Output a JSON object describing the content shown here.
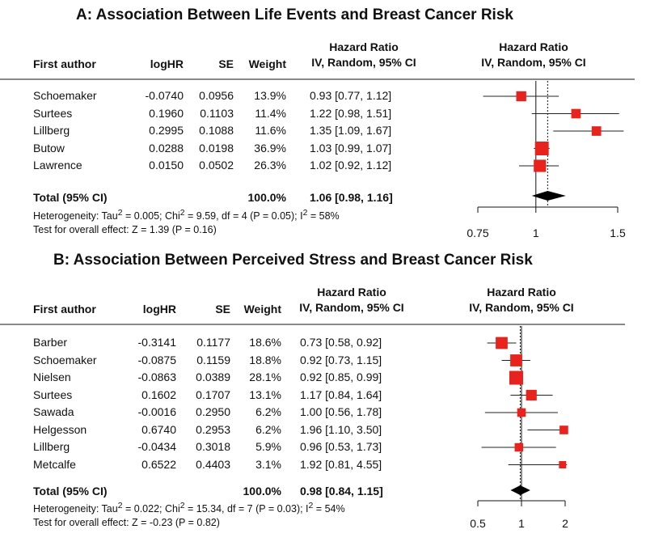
{
  "chart_data": [
    {
      "type": "forest",
      "title": "A: Association Between Life Events and Breast Cancer Risk",
      "columns": {
        "author": "First author",
        "loghr": "logHR",
        "se": "SE",
        "weight": "Weight",
        "hr_top": "Hazard Ratio",
        "hr_bottom": "IV, Random, 95% CI",
        "plot_top": "Hazard Ratio",
        "plot_bottom": "IV, Random, 95% CI"
      },
      "scale": "log",
      "xlim": [
        0.75,
        1.5
      ],
      "ticks": [
        0.75,
        1,
        1.5
      ],
      "tick_labels": [
        "0.75",
        "1",
        "1.5"
      ],
      "studies": [
        {
          "author": "Schoemaker",
          "loghr": "-0.0740",
          "se": "0.0956",
          "weight": "13.9%",
          "ci_text": "0.93 [0.77, 1.12]",
          "hr": 0.93,
          "lo": 0.77,
          "hi": 1.12,
          "w": 13.9
        },
        {
          "author": "Surtees",
          "loghr": "0.1960",
          "se": "0.1103",
          "weight": "11.4%",
          "ci_text": "1.22 [0.98, 1.51]",
          "hr": 1.22,
          "lo": 0.98,
          "hi": 1.51,
          "w": 11.4
        },
        {
          "author": "Lillberg",
          "loghr": "0.2995",
          "se": "0.1088",
          "weight": "11.6%",
          "ci_text": "1.35 [1.09, 1.67]",
          "hr": 1.35,
          "lo": 1.09,
          "hi": 1.67,
          "w": 11.6
        },
        {
          "author": "Butow",
          "loghr": "0.0288",
          "se": "0.0198",
          "weight": "36.9%",
          "ci_text": "1.03 [0.99, 1.07]",
          "hr": 1.03,
          "lo": 0.99,
          "hi": 1.07,
          "w": 36.9
        },
        {
          "author": "Lawrence",
          "loghr": "0.0150",
          "se": "0.0502",
          "weight": "26.3%",
          "ci_text": "1.02 [0.92, 1.12]",
          "hr": 1.02,
          "lo": 0.92,
          "hi": 1.12,
          "w": 26.3
        }
      ],
      "total": {
        "label": "Total (95% CI)",
        "weight": "100.0%",
        "ci_text": "1.06 [0.98, 1.16]",
        "hr": 1.06,
        "lo": 0.98,
        "hi": 1.16
      },
      "heterogeneity": {
        "prefix": "Heterogeneity: Tau",
        "tau_exp": "2",
        "mid": " = 0.005; Chi",
        "chi_exp": "2",
        "rest": " = 9.59, df = 4 (P = 0.05); I",
        "i_exp": "2",
        "end": " = 58%"
      },
      "overall_effect": "Test for overall effect: Z = 1.39 (P = 0.16)"
    },
    {
      "type": "forest",
      "title": "B: Association Between Perceived Stress and Breast Cancer Risk",
      "columns": {
        "author": "First author",
        "loghr": "logHR",
        "se": "SE",
        "weight": "Weight",
        "hr_top": "Hazard Ratio",
        "hr_bottom": "IV, Random, 95% CI",
        "plot_top": "Hazard Ratio",
        "plot_bottom": "IV, Random, 95% CI"
      },
      "scale": "log",
      "xlim": [
        0.5,
        2
      ],
      "ticks": [
        0.5,
        1,
        2
      ],
      "tick_labels": [
        "0.5",
        "1",
        "2"
      ],
      "studies": [
        {
          "author": "Barber",
          "loghr": "-0.3141",
          "se": "0.1177",
          "weight": "18.6%",
          "ci_text": "0.73 [0.58, 0.92]",
          "hr": 0.73,
          "lo": 0.58,
          "hi": 0.92,
          "w": 18.6
        },
        {
          "author": "Schoemaker",
          "loghr": "-0.0875",
          "se": "0.1159",
          "weight": "18.8%",
          "ci_text": "0.92 [0.73, 1.15]",
          "hr": 0.92,
          "lo": 0.73,
          "hi": 1.15,
          "w": 18.8
        },
        {
          "author": "Nielsen",
          "loghr": "-0.0863",
          "se": "0.0389",
          "weight": "28.1%",
          "ci_text": "0.92 [0.85, 0.99]",
          "hr": 0.92,
          "lo": 0.85,
          "hi": 0.99,
          "w": 28.1
        },
        {
          "author": "Surtees",
          "loghr": "0.1602",
          "se": "0.1707",
          "weight": "13.1%",
          "ci_text": "1.17 [0.84, 1.64]",
          "hr": 1.17,
          "lo": 0.84,
          "hi": 1.64,
          "w": 13.1
        },
        {
          "author": "Sawada",
          "loghr": "-0.0016",
          "se": "0.2950",
          "weight": "6.2%",
          "ci_text": "1.00 [0.56, 1.78]",
          "hr": 1.0,
          "lo": 0.56,
          "hi": 1.78,
          "w": 6.2
        },
        {
          "author": "Helgesson",
          "loghr": "0.6740",
          "se": "0.2953",
          "weight": "6.2%",
          "ci_text": "1.96 [1.10, 3.50]",
          "hr": 1.96,
          "lo": 1.1,
          "hi": 3.5,
          "w": 6.2
        },
        {
          "author": "Lillberg",
          "loghr": "-0.0434",
          "se": "0.3018",
          "weight": "5.9%",
          "ci_text": "0.96 [0.53, 1.73]",
          "hr": 0.96,
          "lo": 0.53,
          "hi": 1.73,
          "w": 5.9
        },
        {
          "author": "Metcalfe",
          "loghr": "0.6522",
          "se": "0.4403",
          "weight": "3.1%",
          "ci_text": "1.92 [0.81, 4.55]",
          "hr": 1.92,
          "lo": 0.81,
          "hi": 4.55,
          "w": 3.1
        }
      ],
      "total": {
        "label": "Total (95% CI)",
        "weight": "100.0%",
        "ci_text": "0.98 [0.84, 1.15]",
        "hr": 0.98,
        "lo": 0.84,
        "hi": 1.15
      },
      "heterogeneity": {
        "prefix": "Heterogeneity: Tau",
        "tau_exp": "2",
        "mid": " = 0.022; Chi",
        "chi_exp": "2",
        "rest": " = 15.34, df = 7 (P = 0.03); I",
        "i_exp": "2",
        "end": " = 54%"
      },
      "overall_effect": "Test for overall effect: Z = -0.23 (P = 0.82)"
    }
  ],
  "colors": {
    "marker": "#e8231e",
    "diamond": "#000000",
    "rule": "#888888",
    "line": "#111111"
  }
}
